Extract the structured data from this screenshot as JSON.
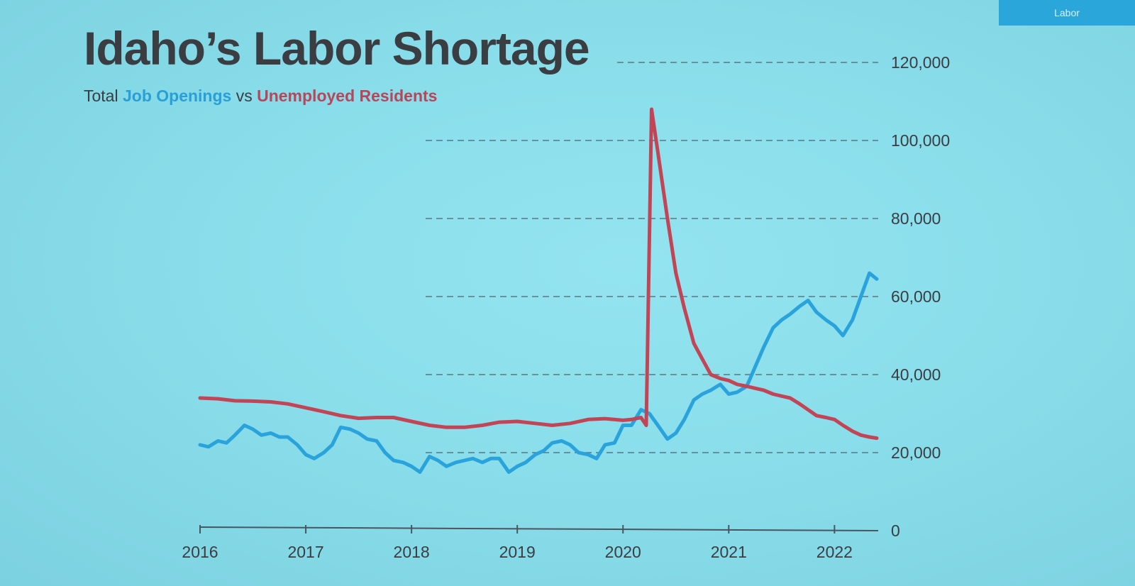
{
  "slide_tab": {
    "label": "Labor"
  },
  "title": "Idaho’s Labor Shortage",
  "subtitle": {
    "prefix": "Total ",
    "series1": "Job Openings",
    "middle": " vs ",
    "series2": "Unemployed Residents"
  },
  "colors": {
    "job_openings": "#2aa3dc",
    "unemployed_residents": "#c24455",
    "text": "#3a3d42",
    "gridline": "#4a5560"
  },
  "chart_data": {
    "type": "line",
    "title": "Idaho’s Labor Shortage",
    "subtitle": "Total Job Openings vs Unemployed Residents",
    "xlabel": "",
    "ylabel": "",
    "xlim": [
      2016,
      2022.4
    ],
    "ylim": [
      0,
      120000
    ],
    "x_ticks": [
      2016,
      2017,
      2018,
      2019,
      2020,
      2021,
      2022
    ],
    "x_tick_labels": [
      "2016",
      "2017",
      "2018",
      "2019",
      "2020",
      "2021",
      "2022"
    ],
    "y_ticks": [
      0,
      20000,
      40000,
      60000,
      80000,
      100000,
      120000
    ],
    "y_tick_labels": [
      "0",
      "20,000",
      "40,000",
      "60,000",
      "80,000",
      "100,000",
      "120,000"
    ],
    "y_axis_side": "right",
    "grid": "horizontal dashed",
    "series": [
      {
        "name": "Job Openings",
        "points": [
          [
            2016.0,
            22000
          ],
          [
            2016.08,
            21500
          ],
          [
            2016.17,
            23000
          ],
          [
            2016.25,
            22500
          ],
          [
            2016.33,
            24500
          ],
          [
            2016.42,
            27000
          ],
          [
            2016.5,
            26000
          ],
          [
            2016.58,
            24500
          ],
          [
            2016.67,
            25000
          ],
          [
            2016.75,
            24000
          ],
          [
            2016.83,
            24000
          ],
          [
            2016.92,
            22000
          ],
          [
            2017.0,
            19500
          ],
          [
            2017.08,
            18500
          ],
          [
            2017.17,
            20000
          ],
          [
            2017.25,
            22000
          ],
          [
            2017.33,
            26500
          ],
          [
            2017.42,
            26000
          ],
          [
            2017.5,
            25000
          ],
          [
            2017.58,
            23500
          ],
          [
            2017.67,
            23000
          ],
          [
            2017.75,
            20000
          ],
          [
            2017.83,
            18000
          ],
          [
            2017.92,
            17500
          ],
          [
            2018.0,
            16500
          ],
          [
            2018.08,
            15000
          ],
          [
            2018.17,
            19000
          ],
          [
            2018.25,
            18000
          ],
          [
            2018.33,
            16500
          ],
          [
            2018.42,
            17500
          ],
          [
            2018.5,
            18000
          ],
          [
            2018.58,
            18500
          ],
          [
            2018.67,
            17500
          ],
          [
            2018.75,
            18500
          ],
          [
            2018.83,
            18500
          ],
          [
            2018.92,
            15000
          ],
          [
            2019.0,
            16500
          ],
          [
            2019.08,
            17500
          ],
          [
            2019.17,
            19500
          ],
          [
            2019.25,
            20500
          ],
          [
            2019.33,
            22500
          ],
          [
            2019.42,
            23000
          ],
          [
            2019.5,
            22000
          ],
          [
            2019.58,
            20000
          ],
          [
            2019.67,
            19500
          ],
          [
            2019.75,
            18500
          ],
          [
            2019.83,
            22000
          ],
          [
            2019.92,
            22500
          ],
          [
            2020.0,
            27000
          ],
          [
            2020.08,
            27000
          ],
          [
            2020.17,
            31000
          ],
          [
            2020.25,
            30000
          ],
          [
            2020.33,
            27000
          ],
          [
            2020.42,
            23500
          ],
          [
            2020.5,
            25000
          ],
          [
            2020.58,
            28500
          ],
          [
            2020.67,
            33500
          ],
          [
            2020.75,
            35000
          ],
          [
            2020.83,
            36000
          ],
          [
            2020.92,
            37500
          ],
          [
            2021.0,
            35000
          ],
          [
            2021.08,
            35500
          ],
          [
            2021.17,
            37000
          ],
          [
            2021.25,
            42000
          ],
          [
            2021.33,
            47000
          ],
          [
            2021.42,
            52000
          ],
          [
            2021.5,
            54000
          ],
          [
            2021.58,
            55500
          ],
          [
            2021.67,
            57500
          ],
          [
            2021.75,
            59000
          ],
          [
            2021.83,
            56000
          ],
          [
            2021.92,
            54000
          ],
          [
            2022.0,
            52500
          ],
          [
            2022.08,
            50000
          ],
          [
            2022.17,
            54000
          ],
          [
            2022.25,
            60000
          ],
          [
            2022.33,
            66000
          ],
          [
            2022.4,
            64500
          ]
        ]
      },
      {
        "name": "Unemployed Residents",
        "points": [
          [
            2016.0,
            34000
          ],
          [
            2016.17,
            33800
          ],
          [
            2016.33,
            33300
          ],
          [
            2016.5,
            33200
          ],
          [
            2016.67,
            33000
          ],
          [
            2016.83,
            32500
          ],
          [
            2017.0,
            31500
          ],
          [
            2017.17,
            30500
          ],
          [
            2017.33,
            29500
          ],
          [
            2017.5,
            28800
          ],
          [
            2017.67,
            29000
          ],
          [
            2017.83,
            29000
          ],
          [
            2018.0,
            28000
          ],
          [
            2018.17,
            27000
          ],
          [
            2018.33,
            26500
          ],
          [
            2018.5,
            26500
          ],
          [
            2018.67,
            27000
          ],
          [
            2018.83,
            27800
          ],
          [
            2019.0,
            28000
          ],
          [
            2019.17,
            27500
          ],
          [
            2019.33,
            27000
          ],
          [
            2019.5,
            27500
          ],
          [
            2019.67,
            28500
          ],
          [
            2019.83,
            28700
          ],
          [
            2020.0,
            28300
          ],
          [
            2020.08,
            28500
          ],
          [
            2020.17,
            29000
          ],
          [
            2020.22,
            27000
          ],
          [
            2020.27,
            108000
          ],
          [
            2020.33,
            97000
          ],
          [
            2020.42,
            80000
          ],
          [
            2020.5,
            66000
          ],
          [
            2020.58,
            57000
          ],
          [
            2020.67,
            48000
          ],
          [
            2020.75,
            44000
          ],
          [
            2020.83,
            40000
          ],
          [
            2020.92,
            39000
          ],
          [
            2021.0,
            38500
          ],
          [
            2021.08,
            37500
          ],
          [
            2021.17,
            37000
          ],
          [
            2021.25,
            36500
          ],
          [
            2021.33,
            36000
          ],
          [
            2021.42,
            35000
          ],
          [
            2021.5,
            34500
          ],
          [
            2021.58,
            34000
          ],
          [
            2021.67,
            32500
          ],
          [
            2021.75,
            31000
          ],
          [
            2021.83,
            29500
          ],
          [
            2021.92,
            29000
          ],
          [
            2022.0,
            28500
          ],
          [
            2022.08,
            27000
          ],
          [
            2022.17,
            25500
          ],
          [
            2022.25,
            24500
          ],
          [
            2022.33,
            24000
          ],
          [
            2022.4,
            23700
          ]
        ]
      }
    ]
  }
}
